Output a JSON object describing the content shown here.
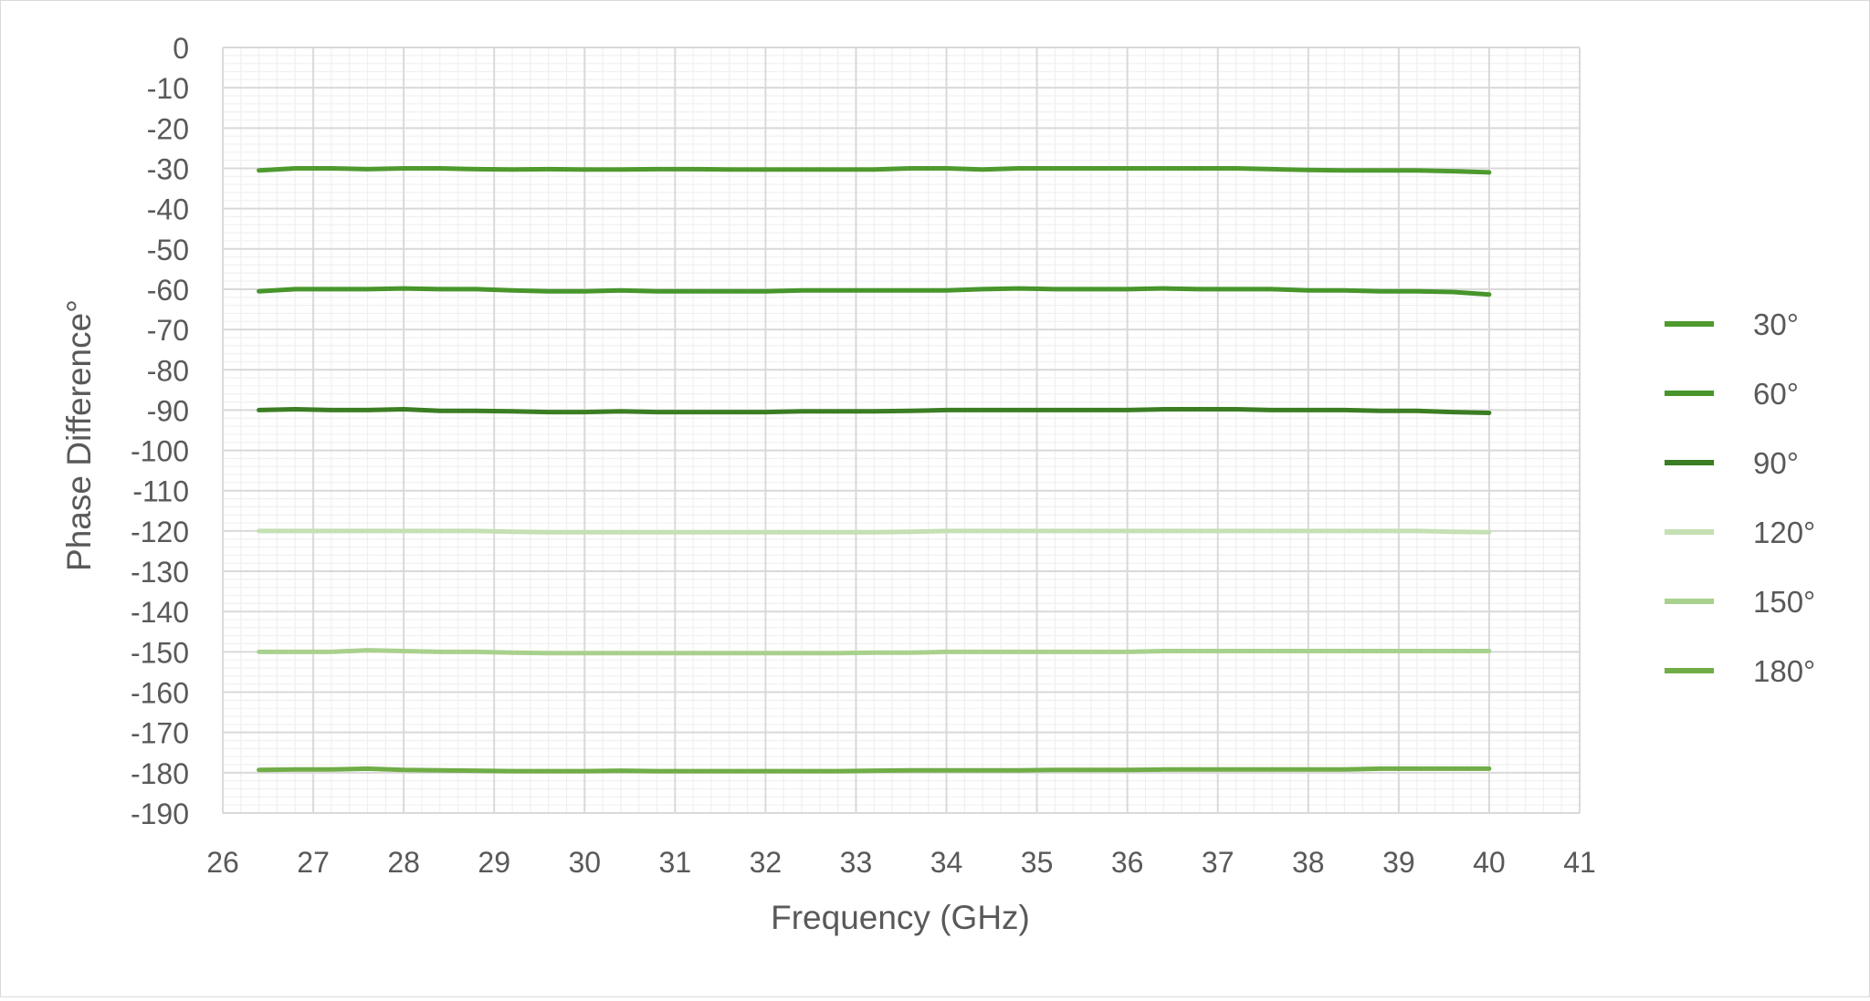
{
  "chart_data": {
    "type": "line",
    "title": "",
    "xlabel": "Frequency (GHz)",
    "ylabel": "Phase Difference°",
    "xlim": [
      26,
      41
    ],
    "ylim": [
      -190,
      0
    ],
    "xticks": [
      "26",
      "27",
      "28",
      "29",
      "30",
      "31",
      "32",
      "33",
      "34",
      "35",
      "36",
      "37",
      "38",
      "39",
      "40",
      "41"
    ],
    "yticks": [
      "0",
      "-10",
      "-20",
      "-30",
      "-40",
      "-50",
      "-60",
      "-70",
      "-80",
      "-90",
      "-100",
      "-110",
      "-120",
      "-130",
      "-140",
      "-150",
      "-160",
      "-170",
      "-180",
      "-190"
    ],
    "grid": {
      "major": true,
      "minor": true
    },
    "legend_position": "right",
    "series": [
      {
        "name": "30°",
        "color": "#4e9a2e",
        "x": [
          26.4,
          26.8,
          27.2,
          27.6,
          28.0,
          28.4,
          28.8,
          29.2,
          29.6,
          30.0,
          30.4,
          30.8,
          31.2,
          31.6,
          32.0,
          32.4,
          32.8,
          33.2,
          33.6,
          34.0,
          34.4,
          34.8,
          35.2,
          35.6,
          36.0,
          36.4,
          36.8,
          37.2,
          37.6,
          38.0,
          38.4,
          38.8,
          39.2,
          39.6,
          40.0
        ],
        "y": [
          -30.5,
          -30.0,
          -30.0,
          -30.2,
          -30.0,
          -30.0,
          -30.2,
          -30.3,
          -30.2,
          -30.3,
          -30.3,
          -30.2,
          -30.2,
          -30.3,
          -30.3,
          -30.3,
          -30.3,
          -30.3,
          -30.0,
          -30.0,
          -30.3,
          -30.0,
          -30.0,
          -30.0,
          -30.0,
          -30.0,
          -30.0,
          -30.0,
          -30.2,
          -30.4,
          -30.5,
          -30.5,
          -30.5,
          -30.7,
          -31.0
        ]
      },
      {
        "name": "60°",
        "color": "#47952b",
        "x": [
          26.4,
          26.8,
          27.2,
          27.6,
          28.0,
          28.4,
          28.8,
          29.2,
          29.6,
          30.0,
          30.4,
          30.8,
          31.2,
          31.6,
          32.0,
          32.4,
          32.8,
          33.2,
          33.6,
          34.0,
          34.4,
          34.8,
          35.2,
          35.6,
          36.0,
          36.4,
          36.8,
          37.2,
          37.6,
          38.0,
          38.4,
          38.8,
          39.2,
          39.6,
          40.0
        ],
        "y": [
          -60.5,
          -60.0,
          -60.0,
          -60.0,
          -59.8,
          -60.0,
          -60.0,
          -60.3,
          -60.5,
          -60.5,
          -60.3,
          -60.5,
          -60.5,
          -60.5,
          -60.5,
          -60.3,
          -60.3,
          -60.3,
          -60.3,
          -60.3,
          -60.0,
          -59.8,
          -60.0,
          -60.0,
          -60.0,
          -59.8,
          -60.0,
          -60.0,
          -60.0,
          -60.3,
          -60.3,
          -60.5,
          -60.5,
          -60.7,
          -61.3
        ]
      },
      {
        "name": "90°",
        "color": "#3a7d22",
        "x": [
          26.4,
          26.8,
          27.2,
          27.6,
          28.0,
          28.4,
          28.8,
          29.2,
          29.6,
          30.0,
          30.4,
          30.8,
          31.2,
          31.6,
          32.0,
          32.4,
          32.8,
          33.2,
          33.6,
          34.0,
          34.4,
          34.8,
          35.2,
          35.6,
          36.0,
          36.4,
          36.8,
          37.2,
          37.6,
          38.0,
          38.4,
          38.8,
          39.2,
          39.6,
          40.0
        ],
        "y": [
          -90.0,
          -89.8,
          -90.0,
          -90.0,
          -89.8,
          -90.2,
          -90.2,
          -90.3,
          -90.5,
          -90.5,
          -90.3,
          -90.5,
          -90.5,
          -90.5,
          -90.5,
          -90.3,
          -90.3,
          -90.3,
          -90.2,
          -90.0,
          -90.0,
          -90.0,
          -90.0,
          -90.0,
          -90.0,
          -89.8,
          -89.8,
          -89.8,
          -90.0,
          -90.0,
          -90.0,
          -90.2,
          -90.2,
          -90.5,
          -90.7
        ]
      },
      {
        "name": "120°",
        "color": "#c5e0b4",
        "x": [
          26.4,
          26.8,
          27.2,
          27.6,
          28.0,
          28.4,
          28.8,
          29.2,
          29.6,
          30.0,
          30.4,
          30.8,
          31.2,
          31.6,
          32.0,
          32.4,
          32.8,
          33.2,
          33.6,
          34.0,
          34.4,
          34.8,
          35.2,
          35.6,
          36.0,
          36.4,
          36.8,
          37.2,
          37.6,
          38.0,
          38.4,
          38.8,
          39.2,
          39.6,
          40.0
        ],
        "y": [
          -120.0,
          -120.0,
          -120.0,
          -120.0,
          -120.0,
          -120.0,
          -120.0,
          -120.2,
          -120.3,
          -120.3,
          -120.3,
          -120.3,
          -120.3,
          -120.3,
          -120.3,
          -120.3,
          -120.3,
          -120.3,
          -120.2,
          -120.0,
          -120.0,
          -120.0,
          -120.0,
          -120.0,
          -120.0,
          -120.0,
          -120.0,
          -120.0,
          -120.0,
          -120.0,
          -120.0,
          -120.0,
          -120.0,
          -120.2,
          -120.3
        ]
      },
      {
        "name": "150°",
        "color": "#a9d18e",
        "x": [
          26.4,
          26.8,
          27.2,
          27.6,
          28.0,
          28.4,
          28.8,
          29.2,
          29.6,
          30.0,
          30.4,
          30.8,
          31.2,
          31.6,
          32.0,
          32.4,
          32.8,
          33.2,
          33.6,
          34.0,
          34.4,
          34.8,
          35.2,
          35.6,
          36.0,
          36.4,
          36.8,
          37.2,
          37.6,
          38.0,
          38.4,
          38.8,
          39.2,
          39.6,
          40.0
        ],
        "y": [
          -150.0,
          -150.0,
          -150.0,
          -149.6,
          -149.8,
          -150.0,
          -150.0,
          -150.2,
          -150.3,
          -150.3,
          -150.3,
          -150.3,
          -150.3,
          -150.3,
          -150.3,
          -150.3,
          -150.3,
          -150.2,
          -150.2,
          -150.0,
          -150.0,
          -150.0,
          -150.0,
          -150.0,
          -150.0,
          -149.8,
          -149.8,
          -149.8,
          -149.8,
          -149.8,
          -149.8,
          -149.8,
          -149.8,
          -149.8,
          -149.8
        ]
      },
      {
        "name": "180°",
        "color": "#70ad47",
        "x": [
          26.4,
          26.8,
          27.2,
          27.6,
          28.0,
          28.4,
          28.8,
          29.2,
          29.6,
          30.0,
          30.4,
          30.8,
          31.2,
          31.6,
          32.0,
          32.4,
          32.8,
          33.2,
          33.6,
          34.0,
          34.4,
          34.8,
          35.2,
          35.6,
          36.0,
          36.4,
          36.8,
          37.2,
          37.6,
          38.0,
          38.4,
          38.8,
          39.2,
          39.6,
          40.0
        ],
        "y": [
          -179.3,
          -179.2,
          -179.2,
          -179.0,
          -179.3,
          -179.4,
          -179.5,
          -179.6,
          -179.6,
          -179.6,
          -179.5,
          -179.6,
          -179.6,
          -179.6,
          -179.6,
          -179.6,
          -179.6,
          -179.5,
          -179.4,
          -179.4,
          -179.4,
          -179.4,
          -179.3,
          -179.3,
          -179.3,
          -179.2,
          -179.2,
          -179.2,
          -179.2,
          -179.2,
          -179.2,
          -179.0,
          -179.0,
          -179.0,
          -179.0
        ]
      }
    ]
  }
}
